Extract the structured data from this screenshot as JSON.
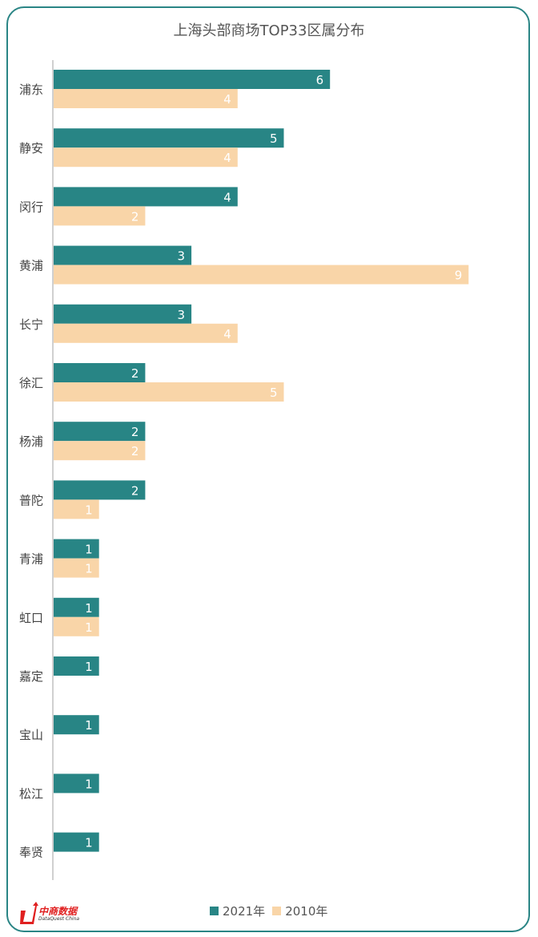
{
  "chart_data": {
    "type": "bar",
    "orientation": "horizontal",
    "title": "上海头部商场TOP33区属分布",
    "categories": [
      "浦东",
      "静安",
      "闵行",
      "黄浦",
      "长宁",
      "徐汇",
      "杨浦",
      "普陀",
      "青浦",
      "虹口",
      "嘉定",
      "宝山",
      "松江",
      "奉贤"
    ],
    "series": [
      {
        "name": "2021年",
        "color": "#288585",
        "values": [
          6,
          5,
          4,
          3,
          3,
          2,
          2,
          2,
          1,
          1,
          1,
          1,
          1,
          1
        ]
      },
      {
        "name": "2010年",
        "color": "#f9d5a8",
        "values": [
          4,
          4,
          2,
          9,
          4,
          5,
          2,
          1,
          1,
          1,
          null,
          null,
          null,
          null
        ]
      }
    ],
    "xlim": [
      0,
      10
    ],
    "grid": false,
    "legend": "bottom",
    "data_labels": true
  },
  "logo": {
    "cn": "中商数据",
    "en": "DataQuest China"
  }
}
